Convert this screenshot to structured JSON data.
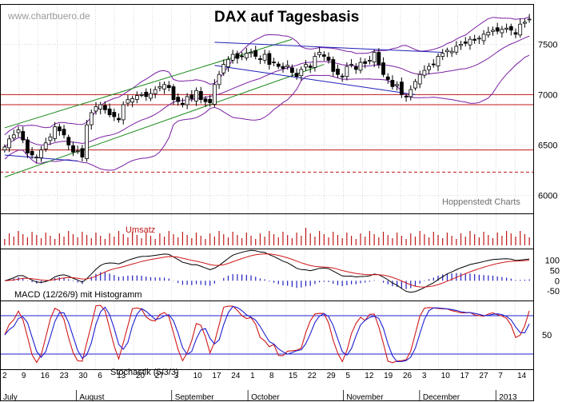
{
  "header": {
    "watermark": "www.chartbuero.de",
    "title": "DAX auf Tagesbasis",
    "source": "Hoppenstedt Charts"
  },
  "colors": {
    "candle": "#000000",
    "bollinger": "#7a1fa2",
    "channel": "#1a8a1a",
    "downtrend": "#1f1fb8",
    "hline": "#c01818",
    "volume": "#c01818",
    "macd": "#000000",
    "signal": "#d01818",
    "histogram": "#2020c0",
    "stoch_k": "#d01818",
    "stoch_d": "#1f1fd0",
    "grid": "#b0b0b0"
  },
  "chart_data": [
    {
      "type": "candlestick",
      "title": "DAX auf Tagesbasis",
      "ylim": [
        5820,
        7900
      ],
      "yticks": [
        6000,
        6500,
        7000,
        7500
      ],
      "x_month_labels": [
        "July",
        "August",
        "September",
        "October",
        "November",
        "December",
        "2013"
      ],
      "x_day_labels": [
        "2",
        "9",
        "16",
        "23",
        "30",
        "6",
        "13",
        "20",
        "27",
        "3",
        "10",
        "17",
        "24",
        "1",
        "8",
        "15",
        "22",
        "29",
        "5",
        "12",
        "19",
        "26",
        "3",
        "10",
        "17",
        "27",
        "7",
        "14"
      ],
      "closes": [
        6480,
        6560,
        6600,
        6650,
        6550,
        6420,
        6400,
        6380,
        6450,
        6520,
        6580,
        6680,
        6640,
        6600,
        6500,
        6430,
        6440,
        6380,
        6700,
        6820,
        6880,
        6900,
        6850,
        6800,
        6780,
        6750,
        6900,
        6950,
        6960,
        6990,
        7000,
        6980,
        7010,
        7050,
        7080,
        7100,
        7070,
        6950,
        6930,
        6900,
        6980,
        6960,
        7040,
        6950,
        6930,
        6920,
        7100,
        7200,
        7300,
        7350,
        7400,
        7360,
        7380,
        7410,
        7420,
        7380,
        7350,
        7400,
        7300,
        7320,
        7280,
        7260,
        7290,
        7220,
        7180,
        7250,
        7300,
        7270,
        7380,
        7420,
        7380,
        7340,
        7230,
        7200,
        7180,
        7280,
        7300,
        7250,
        7320,
        7310,
        7340,
        7420,
        7300,
        7200,
        7150,
        7080,
        7100,
        7000,
        6980,
        7050,
        7130,
        7200,
        7240,
        7280,
        7300,
        7380,
        7410,
        7440,
        7430,
        7480,
        7500,
        7510,
        7550,
        7540,
        7560,
        7600,
        7620,
        7640,
        7630,
        7650,
        7660,
        7640,
        7600,
        7700,
        7720,
        7750
      ],
      "hlines": [
        7000,
        6900,
        6450,
        6230
      ],
      "volume_label": "Umsatz",
      "macd_label": "MACD (12/26/9) mit Histogramm",
      "macd_yticks": [
        100,
        50,
        0,
        -50
      ],
      "stoch_label": "Stochastik (5/3/3)",
      "stoch_yticks": [
        50
      ],
      "stoch_levels": [
        80,
        20
      ]
    }
  ]
}
